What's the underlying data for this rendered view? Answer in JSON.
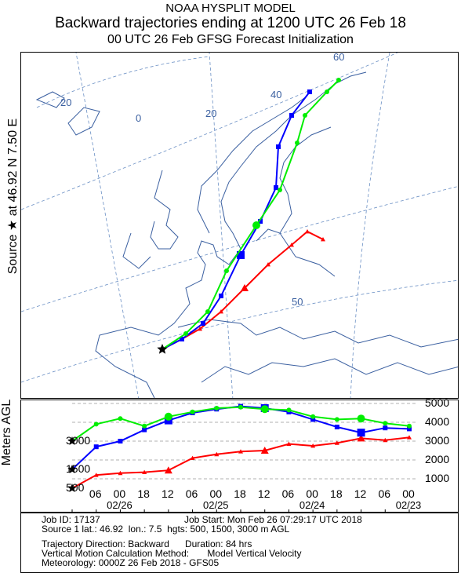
{
  "header": {
    "line1": "NOAA HYSPLIT MODEL",
    "line2": "Backward trajectories ending at 1200 UTC 26 Feb 18",
    "line3": "00 UTC 26 Feb    GFSG  Forecast Initialization"
  },
  "map": {
    "ylabel": "Source ★ at    46.92 N    7.50 E",
    "longitude_labels": [
      "20",
      "0",
      "20",
      "40",
      "60"
    ],
    "latitude_label": "50",
    "colors": {
      "coast": "#3a5fa0",
      "grid": "#6a8fc4",
      "low": "#ff0000",
      "mid": "#0000ff",
      "high": "#00ee00"
    }
  },
  "altitude_panel": {
    "ylabel": "Meters AGL",
    "left_labels": [
      "3000",
      "1500",
      "500"
    ],
    "right_labels": [
      "5000",
      "4000",
      "3000",
      "2000",
      "1000"
    ],
    "hour_labels": [
      "06",
      "00",
      "18",
      "12",
      "06",
      "00",
      "18",
      "12",
      "06",
      "00",
      "18",
      "12",
      "06",
      "00"
    ],
    "date_labels": [
      "02/26",
      "02/25",
      "02/24",
      "02/23"
    ]
  },
  "chart_data": {
    "type": "line",
    "title": "Backward trajectories ending at 1200 UTC 26 Feb 18",
    "xlabel": "",
    "ylabel": "Meters AGL",
    "x_hours_back": [
      0,
      6,
      12,
      18,
      24,
      30,
      36,
      42,
      48,
      54,
      60,
      66,
      72,
      78,
      84
    ],
    "series": [
      {
        "name": "500",
        "values": [
          500,
          1200,
          1300,
          1350,
          1450,
          2100,
          2300,
          2450,
          2500,
          2850,
          2750,
          2900,
          3150,
          3050,
          3200
        ]
      },
      {
        "name": "1500",
        "values": [
          1500,
          2700,
          3000,
          3600,
          4100,
          4500,
          4700,
          4850,
          4750,
          4550,
          4150,
          3750,
          3450,
          3700,
          3650
        ]
      },
      {
        "name": "3000",
        "values": [
          3000,
          3900,
          4200,
          3800,
          4300,
          4550,
          4750,
          4800,
          4700,
          4650,
          4300,
          4150,
          4200,
          3950,
          3800
        ]
      }
    ],
    "ylim": [
      0,
      5000
    ],
    "source": {
      "lat": 46.92,
      "lon": 7.5,
      "heights": [
        500,
        1500,
        3000
      ]
    }
  },
  "info": {
    "job_id": "Job ID: 17137",
    "job_start": "Job Start: Mon Feb 26 07:29:17 UTC 2018",
    "source_line": "Source 1 lat.: 46.92  lon.: 7.5  hgts: 500, 1500, 3000 m AGL",
    "direction": "Trajectory Direction: Backward      Duration: 84 hrs",
    "vertical": "Vertical Motion Calculation Method:       Model Vertical Velocity",
    "meteorology": "Meteorology: 0000Z 26 Feb 2018 - GFS05"
  }
}
